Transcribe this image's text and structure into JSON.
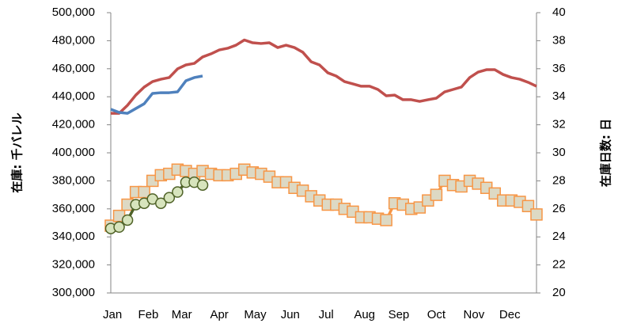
{
  "chart_data": {
    "type": "line",
    "ylabel": "在庫: 千バレル",
    "y2label": "在庫日数: 日",
    "xlim": [
      1,
      52
    ],
    "xticks": [
      {
        "value": 1.2,
        "label": "Jan"
      },
      {
        "value": 5.5,
        "label": "Feb"
      },
      {
        "value": 9.5,
        "label": "Mar"
      },
      {
        "value": 14,
        "label": "Apr"
      },
      {
        "value": 18.3,
        "label": "May"
      },
      {
        "value": 22.5,
        "label": "Jun"
      },
      {
        "value": 26.8,
        "label": "Jul"
      },
      {
        "value": 31.4,
        "label": "Aug"
      },
      {
        "value": 35.5,
        "label": "Sep"
      },
      {
        "value": 40,
        "label": "Oct"
      },
      {
        "value": 44.5,
        "label": "Nov"
      },
      {
        "value": 48.8,
        "label": "Dec"
      }
    ],
    "ylim": [
      300000,
      500000
    ],
    "yticks": [
      {
        "value": 300000,
        "label": "300,000"
      },
      {
        "value": 320000,
        "label": "320,000"
      },
      {
        "value": 340000,
        "label": "340,000"
      },
      {
        "value": 360000,
        "label": "360,000"
      },
      {
        "value": 380000,
        "label": "380,000"
      },
      {
        "value": 400000,
        "label": "400,000"
      },
      {
        "value": 420000,
        "label": "420,000"
      },
      {
        "value": 440000,
        "label": "440,000"
      },
      {
        "value": 460000,
        "label": "460,000"
      },
      {
        "value": 480000,
        "label": "480,000"
      },
      {
        "value": 500000,
        "label": "500,000"
      }
    ],
    "y2lim": [
      20,
      40
    ],
    "y2ticks": [
      20,
      22,
      24,
      26,
      28,
      30,
      32,
      34,
      36,
      38,
      40
    ],
    "grid": false,
    "series": [
      {
        "color": "#c0504d",
        "marker": "none",
        "x": [
          1,
          2,
          3,
          4,
          5,
          6,
          7,
          8,
          9,
          10,
          11,
          12,
          13,
          14,
          15,
          16,
          17,
          18,
          19,
          20,
          21,
          22,
          23,
          24,
          25,
          26,
          27,
          28,
          29,
          30,
          31,
          32,
          33,
          34,
          35,
          36,
          37,
          38,
          39,
          40,
          41,
          42,
          43,
          44,
          45,
          46,
          47,
          48,
          49,
          50,
          51,
          52
        ],
        "values": [
          428200,
          428200,
          433900,
          441200,
          446900,
          450800,
          452500,
          453700,
          459900,
          462700,
          463800,
          468400,
          470600,
          473400,
          474600,
          476800,
          480500,
          478500,
          478000,
          478500,
          475100,
          476800,
          475100,
          471800,
          465000,
          462700,
          457100,
          454800,
          450800,
          449200,
          447500,
          447500,
          445200,
          440700,
          441200,
          437900,
          437900,
          436700,
          437900,
          439000,
          443500,
          445200,
          446900,
          453700,
          457600,
          459300,
          459300,
          455900,
          453700,
          452500,
          450300,
          447500
        ]
      },
      {
        "color": "#4f81bd",
        "marker": "none",
        "x": [
          1,
          2,
          3,
          4,
          5,
          6,
          7,
          8,
          9,
          10,
          11,
          12
        ],
        "values": [
          431100,
          428800,
          428200,
          431600,
          435000,
          442400,
          442900,
          442900,
          443500,
          451400,
          453700,
          454800
        ]
      },
      {
        "color": "#f79646",
        "marker": "square",
        "marker_fill": "#ddd9c4",
        "axis": "y2",
        "x": [
          1,
          2,
          3,
          4,
          5,
          6,
          7,
          8,
          9,
          10,
          11,
          12,
          13,
          14,
          15,
          16,
          17,
          18,
          19,
          20,
          21,
          22,
          23,
          24,
          25,
          26,
          27,
          28,
          29,
          30,
          31,
          32,
          33,
          34,
          35,
          36,
          37,
          38,
          39,
          40,
          41,
          42,
          43,
          44,
          45,
          46,
          47,
          48,
          49,
          50,
          51,
          52
        ],
        "values": [
          24.8,
          25.5,
          26.3,
          27.2,
          27.2,
          28.0,
          28.4,
          28.5,
          28.8,
          28.7,
          28.5,
          28.7,
          28.5,
          28.4,
          28.4,
          28.5,
          28.8,
          28.6,
          28.5,
          28.3,
          27.9,
          27.9,
          27.5,
          27.3,
          26.9,
          26.6,
          26.3,
          26.3,
          26.0,
          25.8,
          25.4,
          25.4,
          25.3,
          25.2,
          26.4,
          26.3,
          26.0,
          26.1,
          26.6,
          27.0,
          28.0,
          27.7,
          27.6,
          28.0,
          27.8,
          27.5,
          27.1,
          26.6,
          26.6,
          26.5,
          26.2,
          25.6
        ]
      },
      {
        "color": "#4f6228",
        "marker": "circle",
        "marker_fill": "#d7e4bd",
        "axis": "y2",
        "x": [
          1,
          2,
          3,
          4,
          5,
          6,
          7,
          8,
          9,
          10,
          11,
          12
        ],
        "values": [
          24.6,
          24.7,
          25.2,
          26.3,
          26.4,
          26.7,
          26.4,
          26.8,
          27.2,
          27.9,
          27.9,
          27.7
        ]
      }
    ]
  }
}
